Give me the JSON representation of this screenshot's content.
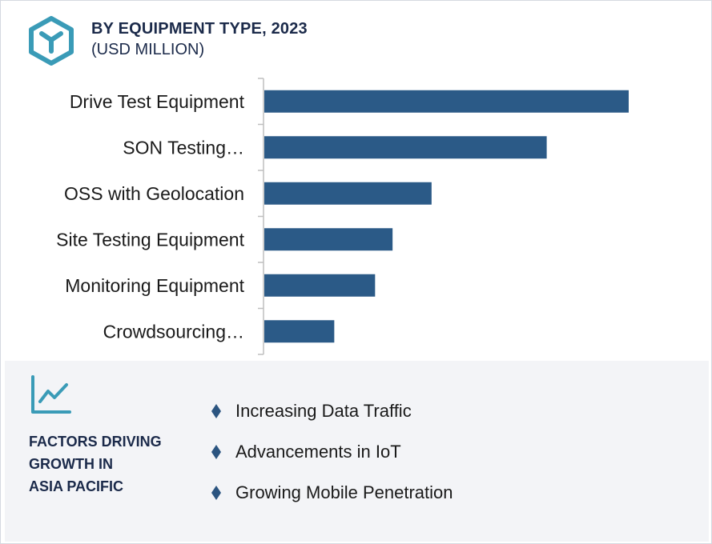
{
  "header": {
    "title": "BY EQUIPMENT TYPE, 2023",
    "subtitle": "(USD MILLION)",
    "logo_icon": "hexagon-y-logo-icon"
  },
  "colors": {
    "bar": "#2b5a87",
    "accent": "#3a9bb7",
    "heading": "#1b2a4a",
    "panel": "#f3f4f7"
  },
  "chart_data": {
    "type": "bar",
    "orientation": "horizontal",
    "categories": [
      "Drive Test Equipment",
      "SON Testing…",
      "OSS with Geolocation",
      "Site Testing Equipment",
      "Monitoring Equipment",
      "Crowdsourcing…"
    ],
    "values": [
      100,
      77.5,
      45.9,
      35.2,
      30.4,
      19.2
    ],
    "xlim": [
      0,
      100
    ],
    "grid": false,
    "legend": "none"
  },
  "factors": {
    "icon": "line-chart-icon",
    "heading_lines": [
      "FACTORS DRIVING",
      "GROWTH IN",
      "ASIA PACIFIC"
    ],
    "items": [
      "Increasing Data Traffic",
      "Advancements in IoT",
      "Growing Mobile Penetration"
    ]
  }
}
